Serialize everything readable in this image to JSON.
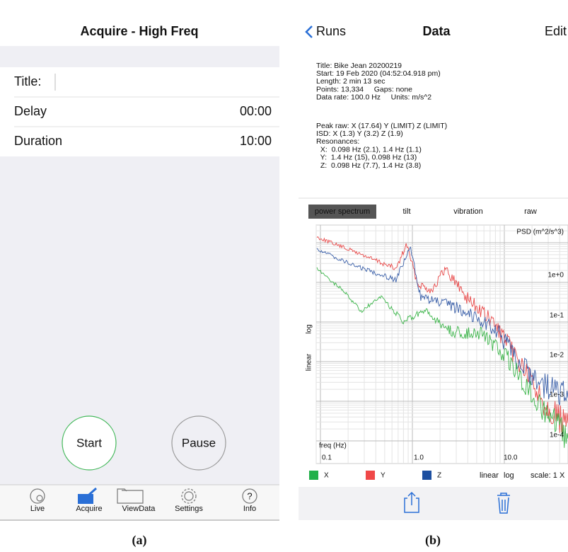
{
  "panel_a": {
    "title": "Acquire - High Freq",
    "fields": [
      {
        "label": "Title:"
      },
      {
        "label": "Delay",
        "value": "00:00"
      },
      {
        "label": "Duration",
        "value": "10:00"
      }
    ],
    "buttons": [
      "Start",
      "Pause"
    ],
    "tabs": [
      "Live",
      "Acquire",
      "ViewData",
      "Settings",
      "Info"
    ],
    "caption": "(a)"
  },
  "panel_b": {
    "back": "Runs",
    "title": "Data",
    "edit": "Edit",
    "info": [
      "Title: Bike Jean 20200219",
      "Start: 19 Feb 2020 (04:52:04.918 pm)",
      "Length: 2 min 13 sec",
      "Points: 13,334     Gaps: none",
      "Data rate: 100.0 Hz     Units: m/s^2"
    ],
    "stats": [
      "Peak raw: X (17.64) Y (LIMIT) Z (LIMIT)",
      "ISD: X (1.3) Y (3.2) Z (1.9)",
      "Resonances:",
      "  X:  0.098 Hz (2.1), 1.4 Hz (1.1)",
      "  Y:  1.4 Hz (15), 0.098 Hz (13)",
      "  Z:  0.098 Hz (7.7), 1.4 Hz (3.8)"
    ],
    "tabs": [
      "power spectrum",
      "tilt",
      "vibration",
      "raw"
    ],
    "plot": {
      "ylabel": "PSD (m^2/s^3)",
      "yticks": [
        "1e+0",
        "1e-1",
        "1e-2",
        "1e-3",
        "1e-4"
      ],
      "xlabel": "freq (Hz)",
      "xticks": [
        "0.1",
        "1.0",
        "10.0"
      ],
      "yscale_modes": [
        "linear",
        "log"
      ]
    },
    "legend": [
      "X",
      "Y",
      "Z"
    ],
    "legend_modes": [
      "linear",
      "log"
    ],
    "scale": "scale: 1 X",
    "caption": "(b)"
  }
}
